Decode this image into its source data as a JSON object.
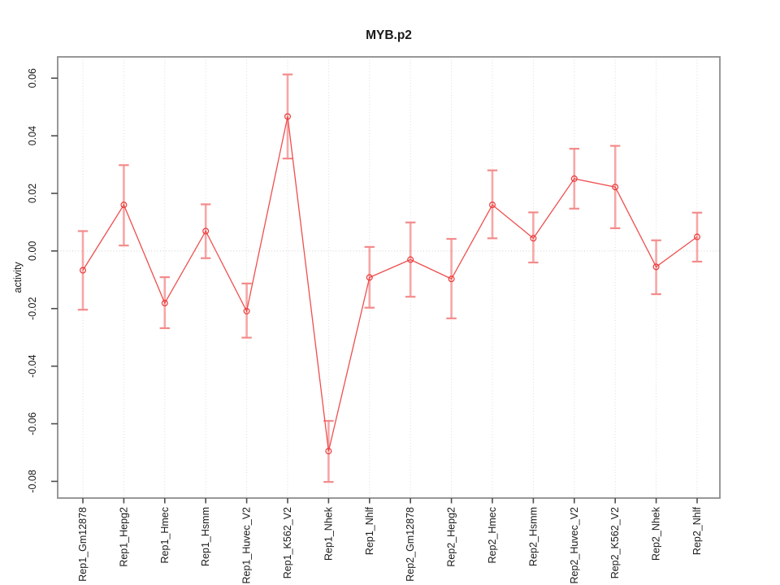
{
  "window": {
    "background": "#ffffff"
  },
  "chart_data": {
    "type": "line",
    "title": "MYB.p2",
    "xlabel": "",
    "ylabel": "activity",
    "categories": [
      "Rep1_Gm12878",
      "Rep1_Hepg2",
      "Rep1_Hmec",
      "Rep1_Hsmm",
      "Rep1_Huvec_V2",
      "Rep1_K562_V2",
      "Rep1_Nhek",
      "Rep1_Nhlf",
      "Rep2_Gm12878",
      "Rep2_Hepg2",
      "Rep2_Hmec",
      "Rep2_Hsmm",
      "Rep2_Huvec_V2",
      "Rep2_K562_V2",
      "Rep2_Nhek",
      "Rep2_Nhlf"
    ],
    "series": [
      {
        "name": "activity",
        "values": [
          -0.0067,
          0.016,
          -0.0181,
          0.0069,
          -0.0209,
          0.0467,
          -0.0695,
          -0.0092,
          -0.003,
          -0.0097,
          0.016,
          0.0044,
          0.0251,
          0.0222,
          -0.0055,
          0.0049
        ],
        "error_low": [
          -0.0204,
          0.0019,
          -0.0268,
          -0.0025,
          -0.0301,
          0.0321,
          -0.0802,
          -0.0197,
          -0.0159,
          -0.0234,
          0.0044,
          -0.004,
          0.0147,
          0.0079,
          -0.015,
          -0.0037
        ],
        "error_high": [
          0.0069,
          0.0298,
          -0.0091,
          0.0162,
          -0.0113,
          0.0613,
          -0.059,
          0.0014,
          0.0099,
          0.0042,
          0.028,
          0.0134,
          0.0355,
          0.0365,
          0.0037,
          0.0133
        ]
      }
    ],
    "yticks": [
      -0.08,
      -0.06,
      -0.04,
      -0.02,
      0.0,
      0.02,
      0.04,
      0.06
    ],
    "ytick_labels": [
      "-0.08",
      "-0.06",
      "-0.04",
      "-0.02",
      "0.00",
      "0.02",
      "0.04",
      "0.06"
    ],
    "ylim": [
      -0.0858,
      0.0674
    ],
    "grid": {
      "vertical_dotted_per_category": true,
      "horizontal_zero_dotted_line": true
    },
    "legend": "none",
    "marker": "open-circle",
    "colors": {
      "series_line": "#ef4e4e",
      "marker_stroke": "#ea3b3b",
      "error_stem": "#f7a6a6",
      "error_cap": "#f48a8a",
      "gridline": "#dbdbdb",
      "zero_line": "#d0d0d0",
      "plot_border": "#8c8c8c",
      "tick_mark": "#4d4d4d",
      "text": "#1a1a1a",
      "background": "#ffffff"
    }
  }
}
